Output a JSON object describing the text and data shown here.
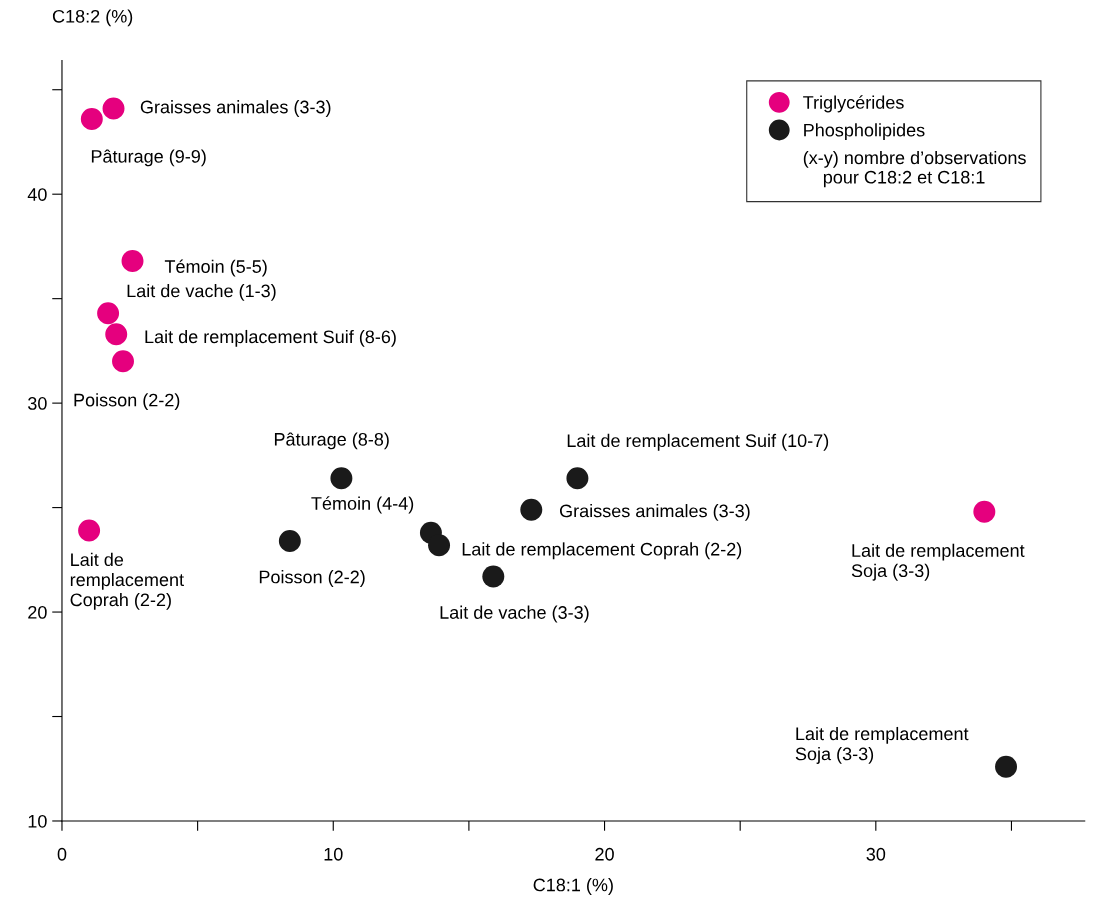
{
  "chart_data": {
    "type": "scatter",
    "xlabel": "C18:1 (%)",
    "ylabel": "C18:2 (%)",
    "xlim": [
      0,
      37.7
    ],
    "ylim": [
      10,
      46.4
    ],
    "xticks": [
      0,
      {
        "value": 5,
        "label": null
      },
      10,
      {
        "value": 15,
        "label": null
      },
      20,
      {
        "value": 25,
        "label": null
      },
      30,
      {
        "value": 35,
        "label": null
      }
    ],
    "yticks": [
      10,
      {
        "value": 15,
        "label": null
      },
      20,
      {
        "value": 25,
        "label": null
      },
      30,
      {
        "value": 35,
        "label": null
      },
      40,
      {
        "value": 45,
        "label": null
      }
    ],
    "grid": false,
    "legend": "top right",
    "marker": "circle",
    "series": [
      {
        "name": "Triglycérides",
        "color": "#e5007e",
        "x": [
          1.9,
          1.1,
          2.6,
          1.7,
          2.0,
          2.25,
          1.0,
          34.0
        ],
        "values": [
          44.1,
          43.6,
          36.8,
          34.3,
          33.3,
          32.0,
          23.9,
          24.8
        ]
      },
      {
        "name": "Phospholipides",
        "color": "#1a1a1a",
        "x": [
          10.3,
          8.4,
          13.6,
          13.9,
          15.9,
          17.3,
          19.0,
          34.8
        ],
        "values": [
          26.4,
          23.4,
          23.8,
          23.2,
          21.7,
          24.9,
          26.4,
          12.6
        ]
      }
    ],
    "annotations": [
      {
        "text": "Graisses animales (3-3)",
        "x": 1.9,
        "y": 44.1
      },
      {
        "text": "Pâturage (9-9)",
        "x": 1.1,
        "y": 43.6
      },
      {
        "text": "Témoin (5-5)",
        "x": 2.6,
        "y": 36.8
      },
      {
        "text": "Lait de vache (1-3)",
        "x": 1.7,
        "y": 34.3
      },
      {
        "text": "Lait de remplacement Suif (8-6)",
        "x": 2.0,
        "y": 33.3
      },
      {
        "text": "Poisson (2-2)",
        "x": 2.25,
        "y": 32.0
      },
      {
        "text": "Lait de\nremplacement\nCoprah (2-2)",
        "x": 1.0,
        "y": 23.9
      },
      {
        "text": "Lait de remplacement\nSoja (3-3)",
        "x": 34.0,
        "y": 24.8
      },
      {
        "text": "Pâturage (8-8)",
        "x": 10.3,
        "y": 26.4
      },
      {
        "text": "Poisson (2-2)",
        "x": 8.4,
        "y": 23.4
      },
      {
        "text": "Témoin (4-4)",
        "x": 13.6,
        "y": 23.8
      },
      {
        "text": "Lait de remplacement Coprah (2-2)",
        "x": 13.9,
        "y": 23.2
      },
      {
        "text": "Lait de vache (3-3)",
        "x": 15.9,
        "y": 21.7
      },
      {
        "text": "Graisses animales (3-3)",
        "x": 17.3,
        "y": 24.9
      },
      {
        "text": "Lait de remplacement Suif (10-7)",
        "x": 19.0,
        "y": 26.4
      },
      {
        "text": "Lait de remplacement\nSoja (3-3)",
        "x": 34.8,
        "y": 12.6
      },
      "(x-y) nombre d’observations\n    pour C18:2 et C18:1"
    ]
  }
}
